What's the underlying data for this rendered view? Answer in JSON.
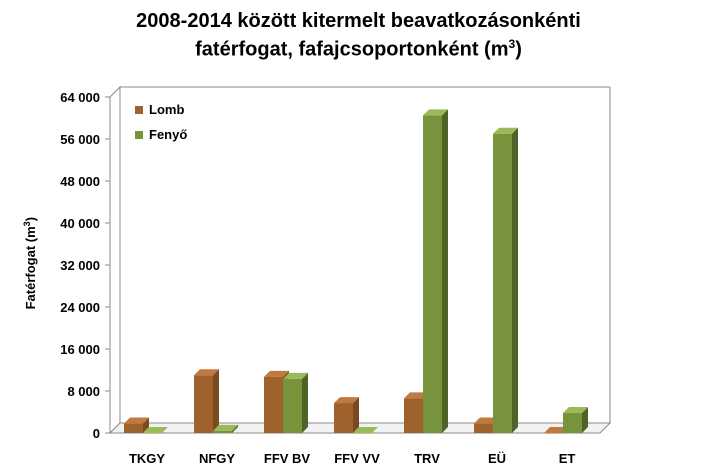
{
  "chart_data": {
    "type": "bar",
    "title_line1": "2008-2014 között kitermelt beavatkozásonkénti",
    "title_line2": "fatérfogat, fafajcsoportonként (m",
    "title_sup": "3",
    "title_end": ")",
    "ylabel": "Fatérfogat (m",
    "ylabel_sup": "3",
    "ylabel_end": ")",
    "categories": [
      "TKGY",
      "NFGY",
      "FFV BV",
      "FFV VV",
      "TRV",
      "EÜ",
      "ET"
    ],
    "series": [
      {
        "name": "Lomb",
        "values": [
          1800,
          11000,
          10700,
          5700,
          6600,
          1800,
          0
        ],
        "color": "#A0622D",
        "side": "#7A4A21",
        "top": "#C07A40"
      },
      {
        "name": "Fenyő",
        "values": [
          0,
          400,
          10300,
          0,
          60500,
          57000,
          3800
        ],
        "color": "#77933C",
        "side": "#4F6228",
        "top": "#9BBB59"
      }
    ],
    "ylim": [
      0,
      64000
    ],
    "yticks": [
      "0",
      "8 000",
      "16 000",
      "24 000",
      "32 000",
      "40 000",
      "48 000",
      "56 000",
      "64 000"
    ],
    "legend_position": "top-left",
    "grid": false
  }
}
